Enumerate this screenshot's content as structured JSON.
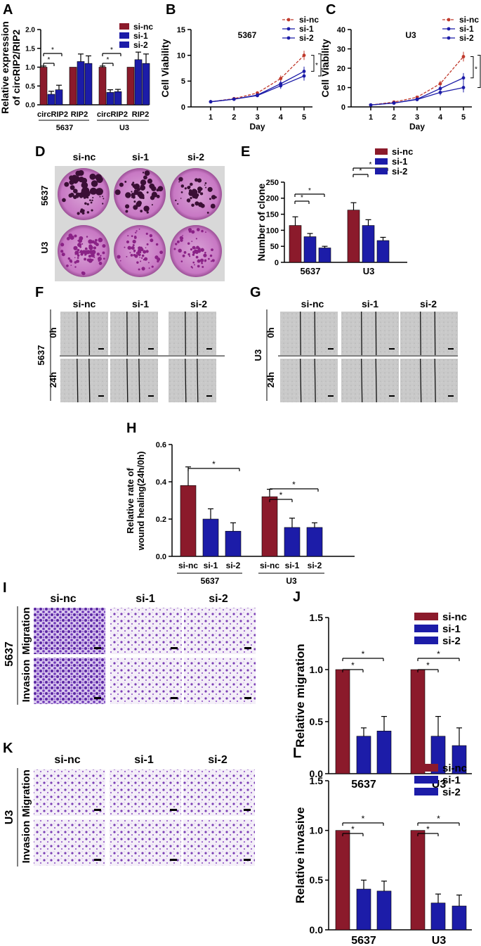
{
  "colors": {
    "red": "#8b1a2b",
    "blue": "#1c1ca8",
    "red_line": "#c0392b",
    "blue_line": "#1c1ca8"
  },
  "panels": {
    "A": {
      "letter": "A",
      "ylabel": [
        "Relative expression",
        "of circRIP2/RIP2"
      ],
      "ticks": [
        "2.0",
        "1.5",
        "1.0",
        "0.5",
        "0.0"
      ],
      "cats": [
        "circRIP2",
        "RIP2",
        "circRIP2",
        "RIP2"
      ],
      "groups": [
        "5637",
        "U3"
      ],
      "legend": [
        "si-nc",
        "si-1",
        "si-2"
      ],
      "star": "*"
    },
    "B": {
      "letter": "B",
      "subtitle": "5367",
      "ylabel": "Cell Viability",
      "xlabel": "Day",
      "yticks": [
        "15",
        "10",
        "5",
        "0"
      ],
      "xticks": [
        "1",
        "2",
        "3",
        "4",
        "5"
      ],
      "legend": [
        "si-nc",
        "si-1",
        "si-2"
      ],
      "star": "*"
    },
    "C": {
      "letter": "C",
      "subtitle": "U3",
      "ylabel": "Cell Viability",
      "xlabel": "Day",
      "yticks": [
        "40",
        "30",
        "20",
        "10",
        "0"
      ],
      "xticks": [
        "1",
        "2",
        "3",
        "4",
        "5"
      ],
      "legend": [
        "si-nc",
        "si-1",
        "si-2"
      ],
      "star": "*"
    },
    "D": {
      "letter": "D",
      "cols": [
        "si-nc",
        "si-1",
        "si-2"
      ],
      "rows": [
        "5637",
        "U3"
      ]
    },
    "E": {
      "letter": "E",
      "ylabel": "Number of clone",
      "ticks": [
        "250",
        "200",
        "150",
        "100",
        "50",
        "0"
      ],
      "groups": [
        "5637",
        "U3"
      ],
      "legend": [
        "si-nc",
        "si-1",
        "si-2"
      ],
      "star": "*"
    },
    "F": {
      "letter": "F",
      "cols": [
        "si-nc",
        "si-1",
        "si-2"
      ],
      "rows": [
        "0h",
        "24h"
      ],
      "side": "5637"
    },
    "G": {
      "letter": "G",
      "cols": [
        "si-nc",
        "si-1",
        "si-2"
      ],
      "rows": [
        "0h",
        "24h"
      ],
      "side": "U3"
    },
    "H": {
      "letter": "H",
      "ylabel": [
        "Relative rate of",
        "wound healing(24h/0h)"
      ],
      "ticks": [
        "0.6",
        "0.4",
        "0.2",
        "0.0"
      ],
      "cats": [
        "si-nc",
        "si-1",
        "si-2",
        "si-nc",
        "si-1",
        "si-2"
      ],
      "groups": [
        "5637",
        "U3"
      ],
      "star": "*"
    },
    "I": {
      "letter": "I",
      "cols": [
        "si-nc",
        "si-1",
        "si-2"
      ],
      "rows": [
        "Migration",
        "Invasion"
      ],
      "side": "5637"
    },
    "J": {
      "letter": "J",
      "ylabel": "Relative migration",
      "ticks": [
        "1.5",
        "1.0",
        "0.5",
        "0.0"
      ],
      "groups": [
        "5637",
        "U3"
      ],
      "legend": [
        "si-nc",
        "si-1",
        "si-2"
      ],
      "star": "*"
    },
    "K": {
      "letter": "K",
      "cols": [
        "si-nc",
        "si-1",
        "si-2"
      ],
      "rows": [
        "Migration",
        "Invasion"
      ],
      "side": "U3"
    },
    "L": {
      "letter": "L",
      "ylabel": "Relative invasive",
      "ticks": [
        "1.5",
        "1.0",
        "0.5",
        "0.0"
      ],
      "groups": [
        "5637",
        "U3"
      ],
      "legend": [
        "si-nc",
        "si-1",
        "si-2"
      ],
      "star": "*"
    }
  },
  "chart_data": [
    {
      "panel": "A",
      "type": "bar",
      "categories": [
        "circRIP2 5637",
        "RIP2 5637",
        "circRIP2 U3",
        "RIP2 U3"
      ],
      "ylim": [
        0,
        2.0
      ],
      "series": [
        {
          "name": "si-nc",
          "values": [
            1.0,
            1.0,
            1.0,
            1.0
          ],
          "err": [
            0.03,
            0.0,
            0.03,
            0.0
          ]
        },
        {
          "name": "si-1",
          "values": [
            0.28,
            1.15,
            0.33,
            1.2
          ],
          "err": [
            0.08,
            0.2,
            0.07,
            0.2
          ]
        },
        {
          "name": "si-2",
          "values": [
            0.4,
            1.1,
            0.35,
            1.1
          ],
          "err": [
            0.12,
            0.2,
            0.06,
            0.25
          ]
        }
      ]
    },
    {
      "panel": "B",
      "type": "line",
      "x": [
        1,
        2,
        3,
        4,
        5
      ],
      "ylim": [
        0,
        15
      ],
      "series": [
        {
          "name": "si-nc",
          "values": [
            1.0,
            1.6,
            2.7,
            5.5,
            10.0
          ],
          "err": [
            0,
            0.1,
            0.2,
            0.6,
            0.9
          ]
        },
        {
          "name": "si-1",
          "values": [
            1.0,
            1.5,
            2.3,
            4.5,
            6.9
          ],
          "err": [
            0,
            0.1,
            0.2,
            0.6,
            0.9
          ]
        },
        {
          "name": "si-2",
          "values": [
            1.0,
            1.5,
            2.2,
            4.1,
            6.0
          ],
          "err": [
            0,
            0.1,
            0.2,
            0.6,
            0.9
          ]
        }
      ]
    },
    {
      "panel": "C",
      "type": "line",
      "x": [
        1,
        2,
        3,
        4,
        5
      ],
      "ylim": [
        0,
        40
      ],
      "series": [
        {
          "name": "si-nc",
          "values": [
            1.0,
            2.5,
            5.0,
            12.0,
            26.0
          ],
          "err": [
            0,
            0.3,
            0.6,
            1.5,
            2.5
          ]
        },
        {
          "name": "si-1",
          "values": [
            1.0,
            2.0,
            4.0,
            9.5,
            15.0
          ],
          "err": [
            0,
            0.3,
            0.6,
            1.5,
            2.5
          ]
        },
        {
          "name": "si-2",
          "values": [
            1.0,
            2.0,
            3.8,
            7.5,
            10.0
          ],
          "err": [
            0,
            0.3,
            0.6,
            1.5,
            2.5
          ]
        }
      ]
    },
    {
      "panel": "E",
      "type": "bar",
      "categories": [
        "5637",
        "U3"
      ],
      "ylim": [
        0,
        250
      ],
      "series": [
        {
          "name": "si-nc",
          "values": [
            115,
            163
          ],
          "err": [
            27,
            23
          ]
        },
        {
          "name": "si-1",
          "values": [
            80,
            115
          ],
          "err": [
            10,
            18
          ]
        },
        {
          "name": "si-2",
          "values": [
            45,
            68
          ],
          "err": [
            5,
            10
          ]
        }
      ]
    },
    {
      "panel": "H",
      "type": "bar",
      "categories": [
        "5637",
        "U3"
      ],
      "ylim": [
        0,
        0.6
      ],
      "series": [
        {
          "name": "si-nc",
          "values": [
            0.38,
            0.32
          ],
          "err": [
            0.1,
            0.04
          ]
        },
        {
          "name": "si-1",
          "values": [
            0.2,
            0.155
          ],
          "err": [
            0.055,
            0.05
          ]
        },
        {
          "name": "si-2",
          "values": [
            0.135,
            0.155
          ],
          "err": [
            0.045,
            0.025
          ]
        }
      ]
    },
    {
      "panel": "J",
      "type": "bar",
      "categories": [
        "5637",
        "U3"
      ],
      "ylim": [
        0,
        1.5
      ],
      "series": [
        {
          "name": "si-nc",
          "values": [
            1.0,
            1.0
          ],
          "err": [
            0,
            0
          ]
        },
        {
          "name": "si-1",
          "values": [
            0.36,
            0.36
          ],
          "err": [
            0.08,
            0.19
          ]
        },
        {
          "name": "si-2",
          "values": [
            0.41,
            0.27
          ],
          "err": [
            0.14,
            0.17
          ]
        }
      ]
    },
    {
      "panel": "L",
      "type": "bar",
      "categories": [
        "5637",
        "U3"
      ],
      "ylim": [
        0,
        1.5
      ],
      "series": [
        {
          "name": "si-nc",
          "values": [
            1.0,
            1.0
          ],
          "err": [
            0,
            0
          ]
        },
        {
          "name": "si-1",
          "values": [
            0.41,
            0.27
          ],
          "err": [
            0.09,
            0.09
          ]
        },
        {
          "name": "si-2",
          "values": [
            0.39,
            0.24
          ],
          "err": [
            0.1,
            0.11
          ]
        }
      ]
    }
  ]
}
